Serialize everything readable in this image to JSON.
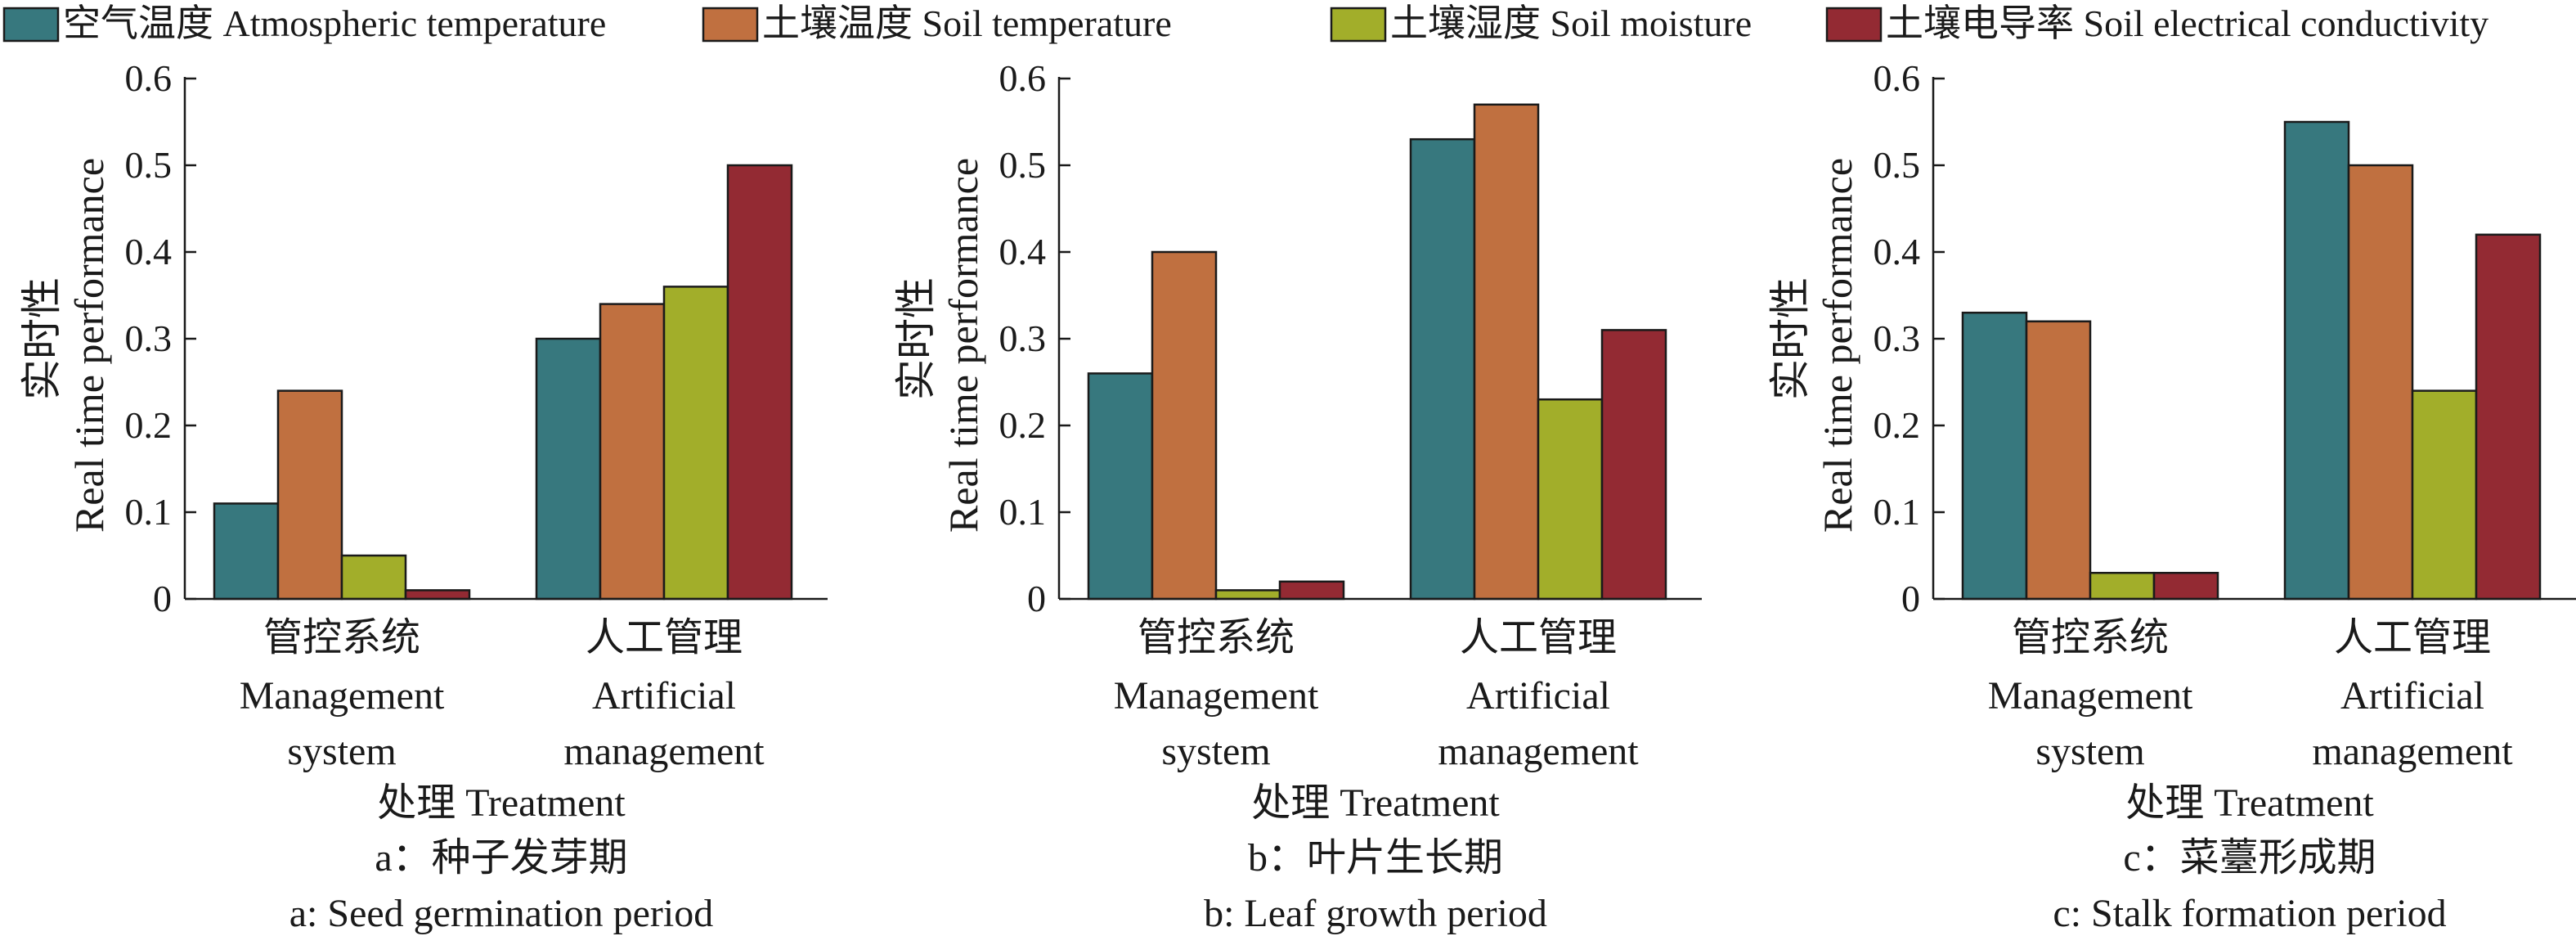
{
  "legend": {
    "placement": "top",
    "items": [
      {
        "label": "空气温度 Atmospheric temperature",
        "color": "#37787e",
        "icon": "legend-swatch"
      },
      {
        "label": "土壤温度 Soil temperature",
        "color": "#c07040",
        "icon": "legend-swatch"
      },
      {
        "label": "土壤湿度 Soil moisture",
        "color": "#a2ae2a",
        "icon": "legend-swatch"
      },
      {
        "label": "土壤电导率 Soil electrical conductivity",
        "color": "#932a33",
        "icon": "legend-swatch"
      }
    ]
  },
  "chart_data": [
    {
      "type": "bar",
      "grid": false,
      "ylim": [
        0,
        0.6
      ],
      "yticks": [
        "0",
        "0.1",
        "0.2",
        "0.3",
        "0.4",
        "0.5",
        "0.6"
      ],
      "ylabel_cn": "实时性",
      "ylabel_en": "Real time performance",
      "xlabel": "处理  Treatment",
      "categories": [
        {
          "cn": "管控系统",
          "en1": "Management",
          "en2": "system"
        },
        {
          "cn": "人工管理",
          "en1": "Artificial",
          "en2": "management"
        }
      ],
      "series": [
        {
          "name": "空气温度 Atmospheric temperature",
          "values": [
            0.11,
            0.3
          ]
        },
        {
          "name": "土壤温度 Soil temperature",
          "values": [
            0.24,
            0.34
          ]
        },
        {
          "name": "土壤湿度 Soil moisture",
          "values": [
            0.05,
            0.36
          ]
        },
        {
          "name": "土壤电导率 Soil electrical conductivity",
          "values": [
            0.01,
            0.5
          ]
        }
      ],
      "caption_cn": "a：种子发芽期",
      "caption_en": "a: Seed germination period"
    },
    {
      "type": "bar",
      "grid": false,
      "ylim": [
        0,
        0.6
      ],
      "yticks": [
        "0",
        "0.1",
        "0.2",
        "0.3",
        "0.4",
        "0.5",
        "0.6"
      ],
      "ylabel_cn": "实时性",
      "ylabel_en": "Real time performance",
      "xlabel": "处理  Treatment",
      "categories": [
        {
          "cn": "管控系统",
          "en1": "Management",
          "en2": "system"
        },
        {
          "cn": "人工管理",
          "en1": "Artificial",
          "en2": "management"
        }
      ],
      "series": [
        {
          "name": "空气温度 Atmospheric temperature",
          "values": [
            0.26,
            0.53
          ]
        },
        {
          "name": "土壤温度 Soil temperature",
          "values": [
            0.4,
            0.57
          ]
        },
        {
          "name": "土壤湿度 Soil moisture",
          "values": [
            0.01,
            0.23
          ]
        },
        {
          "name": "土壤电导率 Soil electrical conductivity",
          "values": [
            0.02,
            0.31
          ]
        }
      ],
      "caption_cn": "b：叶片生长期",
      "caption_en": "b: Leaf growth period"
    },
    {
      "type": "bar",
      "grid": false,
      "ylim": [
        0,
        0.6
      ],
      "yticks": [
        "0",
        "0.1",
        "0.2",
        "0.3",
        "0.4",
        "0.5",
        "0.6"
      ],
      "ylabel_cn": "实时性",
      "ylabel_en": "Real time performance",
      "xlabel": "处理  Treatment",
      "categories": [
        {
          "cn": "管控系统",
          "en1": "Management",
          "en2": "system"
        },
        {
          "cn": "人工管理",
          "en1": "Artificial",
          "en2": "management"
        }
      ],
      "series": [
        {
          "name": "空气温度 Atmospheric temperature",
          "values": [
            0.33,
            0.55
          ]
        },
        {
          "name": "土壤温度 Soil temperature",
          "values": [
            0.32,
            0.5
          ]
        },
        {
          "name": "土壤湿度 Soil moisture",
          "values": [
            0.03,
            0.24
          ]
        },
        {
          "name": "土壤电导率 Soil electrical conductivity",
          "values": [
            0.03,
            0.42
          ]
        }
      ],
      "caption_cn": "c：菜薹形成期",
      "caption_en": "c: Stalk formation period"
    }
  ]
}
